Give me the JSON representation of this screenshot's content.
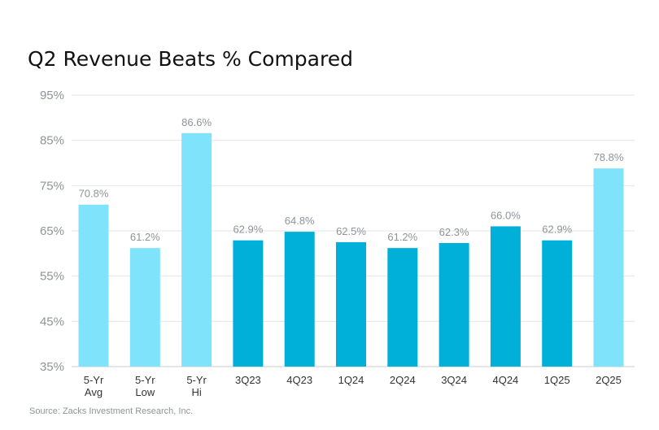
{
  "title": "Q2 Revenue Beats % Compared",
  "source": "Source: Zacks Investment Research, Inc.",
  "colors": {
    "light_bar": "#7fe3fc",
    "dark_bar": "#00b0d8",
    "grid": "#e6e6e6",
    "axis": "#cccccc"
  },
  "chart_data": {
    "type": "bar",
    "title": "Q2 Revenue Beats % Compared",
    "xlabel": "",
    "ylabel": "",
    "ylim": [
      35,
      95
    ],
    "yticks": [
      "35%",
      "45%",
      "55%",
      "65%",
      "75%",
      "85%",
      "95%"
    ],
    "grid": true,
    "categories": [
      [
        "5-Yr",
        "Avg"
      ],
      [
        "5-Yr",
        "Low"
      ],
      [
        "5-Yr",
        "Hi"
      ],
      [
        "3Q23"
      ],
      [
        "4Q23"
      ],
      [
        "1Q24"
      ],
      [
        "2Q24"
      ],
      [
        "3Q24"
      ],
      [
        "4Q24"
      ],
      [
        "1Q25"
      ],
      [
        "2Q25"
      ]
    ],
    "values": [
      70.8,
      61.2,
      86.6,
      62.9,
      64.8,
      62.5,
      61.2,
      62.3,
      66.0,
      62.9,
      78.8
    ],
    "labels": [
      "70.8%",
      "61.2%",
      "86.6%",
      "62.9%",
      "64.8%",
      "62.5%",
      "61.2%",
      "62.3%",
      "66.0%",
      "62.9%",
      "78.8%"
    ],
    "bar_shade": [
      "light",
      "light",
      "light",
      "dark",
      "dark",
      "dark",
      "dark",
      "dark",
      "dark",
      "dark",
      "light"
    ]
  }
}
